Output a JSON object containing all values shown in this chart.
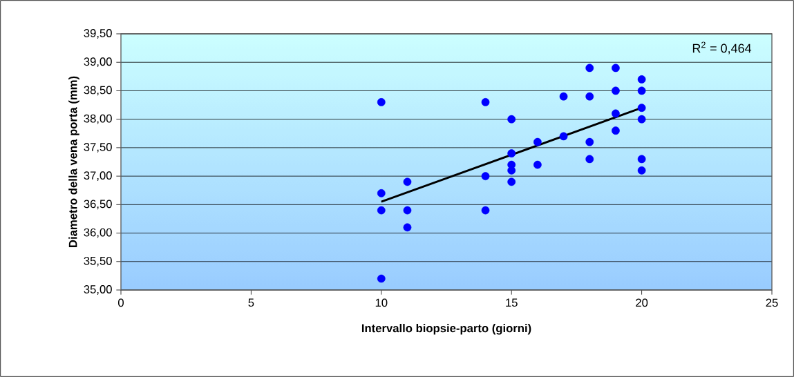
{
  "chart_data": {
    "type": "scatter",
    "xlabel": "Intervallo biopsie-parto (giorni)",
    "ylabel": "Diametro della vena porta (mm)",
    "annotations": [
      "R$^{2}$ = 0,464"
    ],
    "xlim": [
      0,
      25
    ],
    "xticks": [
      0,
      5,
      10,
      15,
      20,
      25
    ],
    "ylim": [
      35,
      39.5
    ],
    "yticks": [
      {
        "value": 35,
        "label": "35,00"
      },
      {
        "value": 35.5,
        "label": "35,50"
      },
      {
        "value": 36,
        "label": "36,00"
      },
      {
        "value": 36.5,
        "label": "36,50"
      },
      {
        "value": 37,
        "label": "37,00"
      },
      {
        "value": 37.5,
        "label": "37,50"
      },
      {
        "value": 38,
        "label": "38,00"
      },
      {
        "value": 38.5,
        "label": "38,50"
      },
      {
        "value": 39,
        "label": "39,00"
      },
      {
        "value": 39.5,
        "label": "39,50"
      }
    ],
    "grid": "y",
    "series": [
      {
        "color": "#0000ff",
        "marker": "circle",
        "x": [
          10,
          10,
          10,
          10,
          11,
          11,
          11,
          14,
          14,
          14,
          15,
          15,
          15,
          15,
          15,
          16,
          16,
          17,
          17,
          18,
          18,
          18,
          18,
          19,
          19,
          19,
          19,
          20,
          20,
          20,
          20,
          20,
          20
        ],
        "values": [
          38.3,
          36.7,
          36.4,
          35.2,
          36.9,
          36.4,
          36.1,
          38.3,
          37.0,
          36.4,
          38.0,
          37.4,
          37.2,
          37.1,
          36.9,
          37.6,
          37.2,
          38.4,
          37.7,
          38.9,
          38.4,
          37.6,
          37.3,
          38.9,
          38.5,
          38.1,
          37.8,
          38.7,
          38.5,
          38.2,
          38.0,
          37.3,
          37.1
        ]
      },
      {
        "type": "line",
        "color": "#000000",
        "marker": "none",
        "x": [
          10,
          20
        ],
        "values": [
          36.55,
          38.2
        ]
      }
    ]
  }
}
